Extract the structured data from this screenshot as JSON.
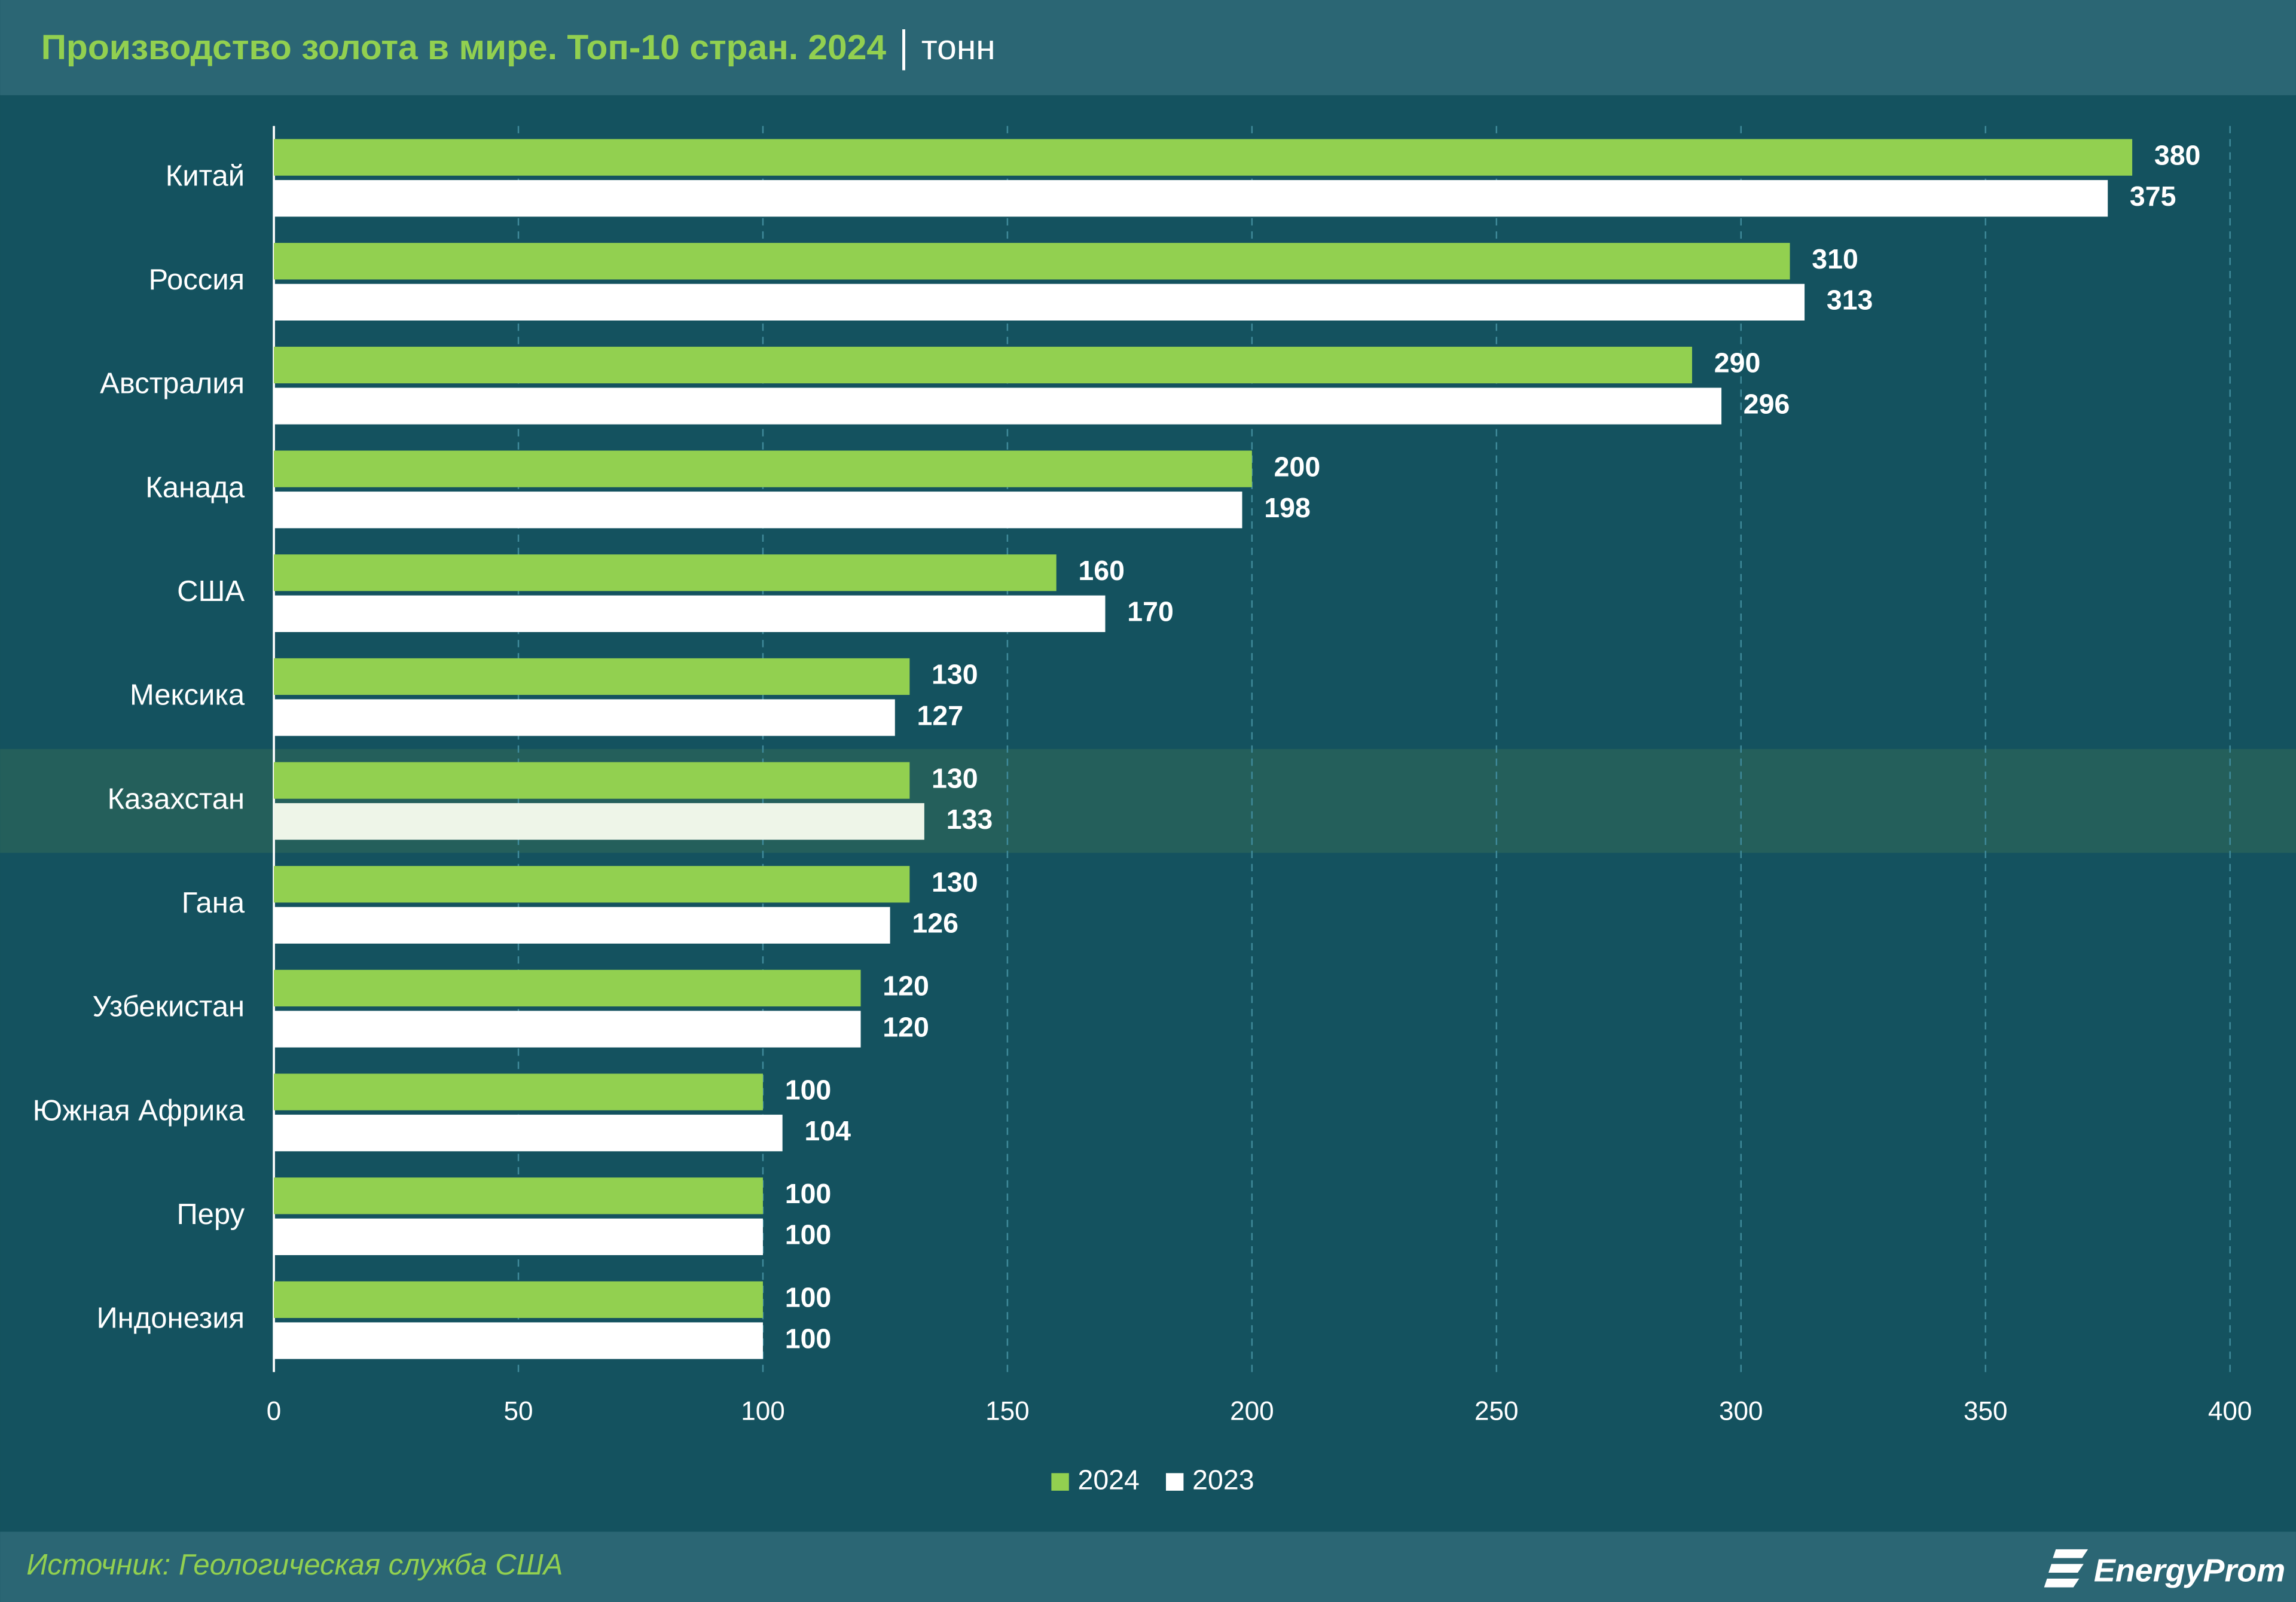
{
  "title": "Производство золота в мире. Топ-10 стран. 2024",
  "unit": "тонн",
  "source": "Источник: Геологическая служба США",
  "logo": "EnergyProm",
  "chart_data": {
    "type": "hbar",
    "categories": [
      "Китай",
      "Россия",
      "Австралия",
      "Канада",
      "США",
      "Мексика",
      "Казахстан",
      "Гана",
      "Узбекистан",
      "Южная Африка",
      "Перу",
      "Индонезия"
    ],
    "series": [
      {
        "name": "2024",
        "color": "#92d050",
        "values": [
          380,
          310,
          290,
          200,
          160,
          130,
          130,
          130,
          120,
          100,
          100,
          100
        ]
      },
      {
        "name": "2023",
        "color": "#ffffff",
        "values": [
          375,
          313,
          296,
          198,
          170,
          127,
          133,
          126,
          120,
          104,
          100,
          100
        ]
      }
    ],
    "xlim": [
      0,
      400
    ],
    "xticks": [
      0,
      50,
      100,
      150,
      200,
      250,
      300,
      350,
      400
    ],
    "grid": true,
    "highlight": 6,
    "legend": "bottom"
  }
}
